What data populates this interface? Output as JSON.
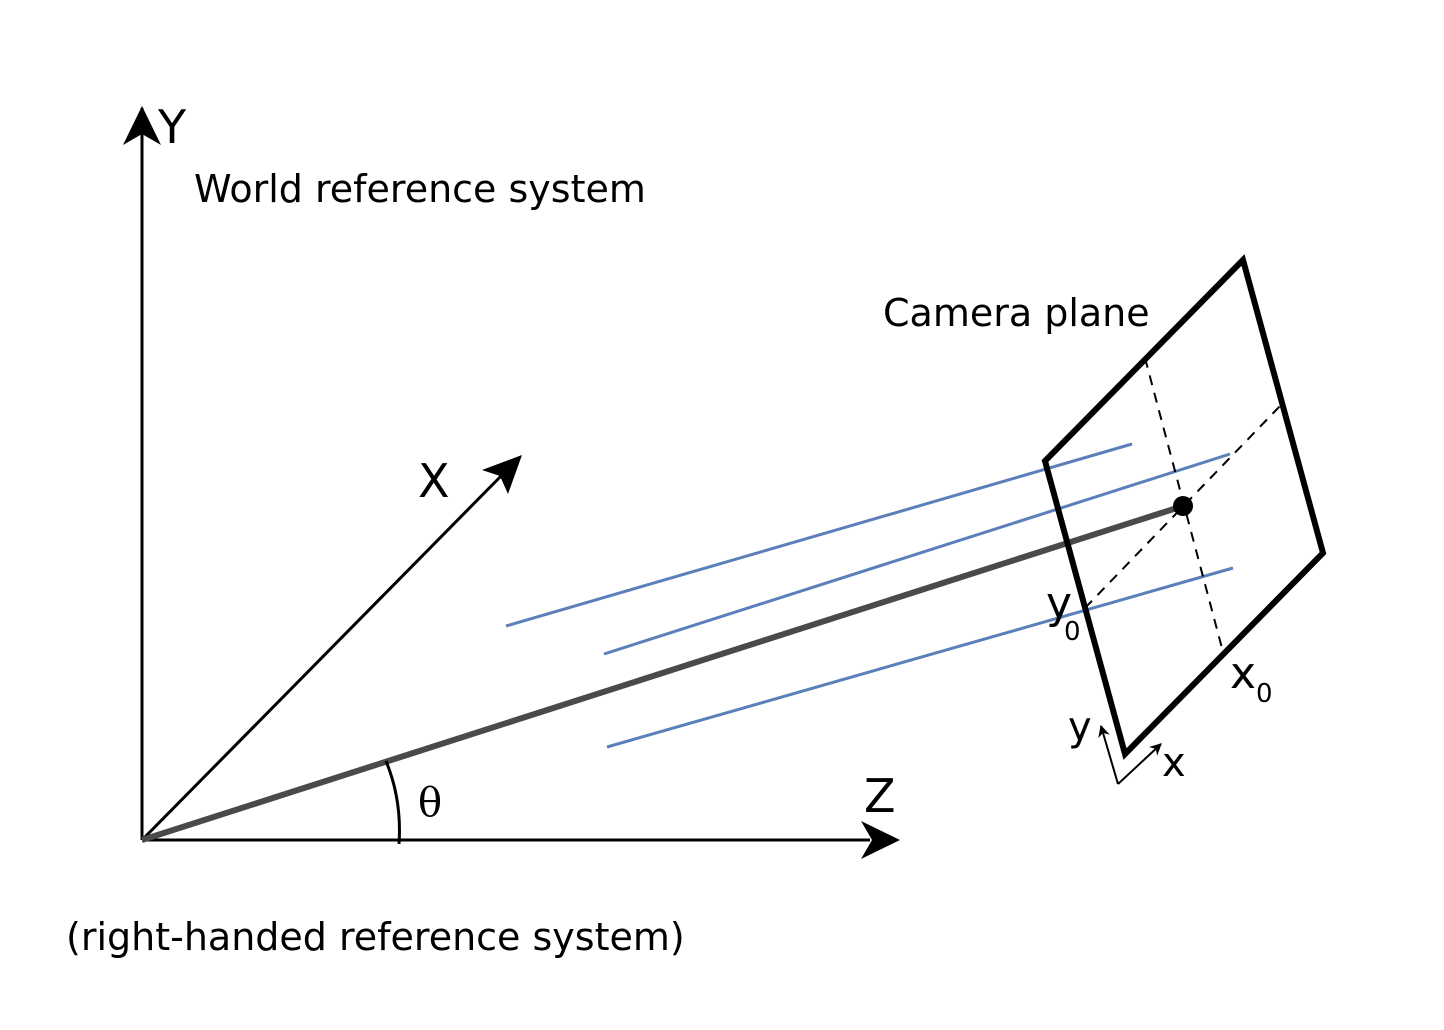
{
  "labels": {
    "world_title": "World reference system",
    "camera_title": "Camera plane",
    "note": "(right-handed reference system)",
    "axis_y": "Y",
    "axis_x": "X",
    "axis_z": "Z",
    "angle": "θ",
    "y0_main": "y",
    "y0_sub": "0",
    "x0_main": "x",
    "x0_sub": "0",
    "cam_y": "y",
    "cam_x": "x"
  },
  "colors": {
    "axis": "#000000",
    "ray_main": "#4a4a4a",
    "rays": "#5b7fba",
    "background": "#ffffff"
  }
}
